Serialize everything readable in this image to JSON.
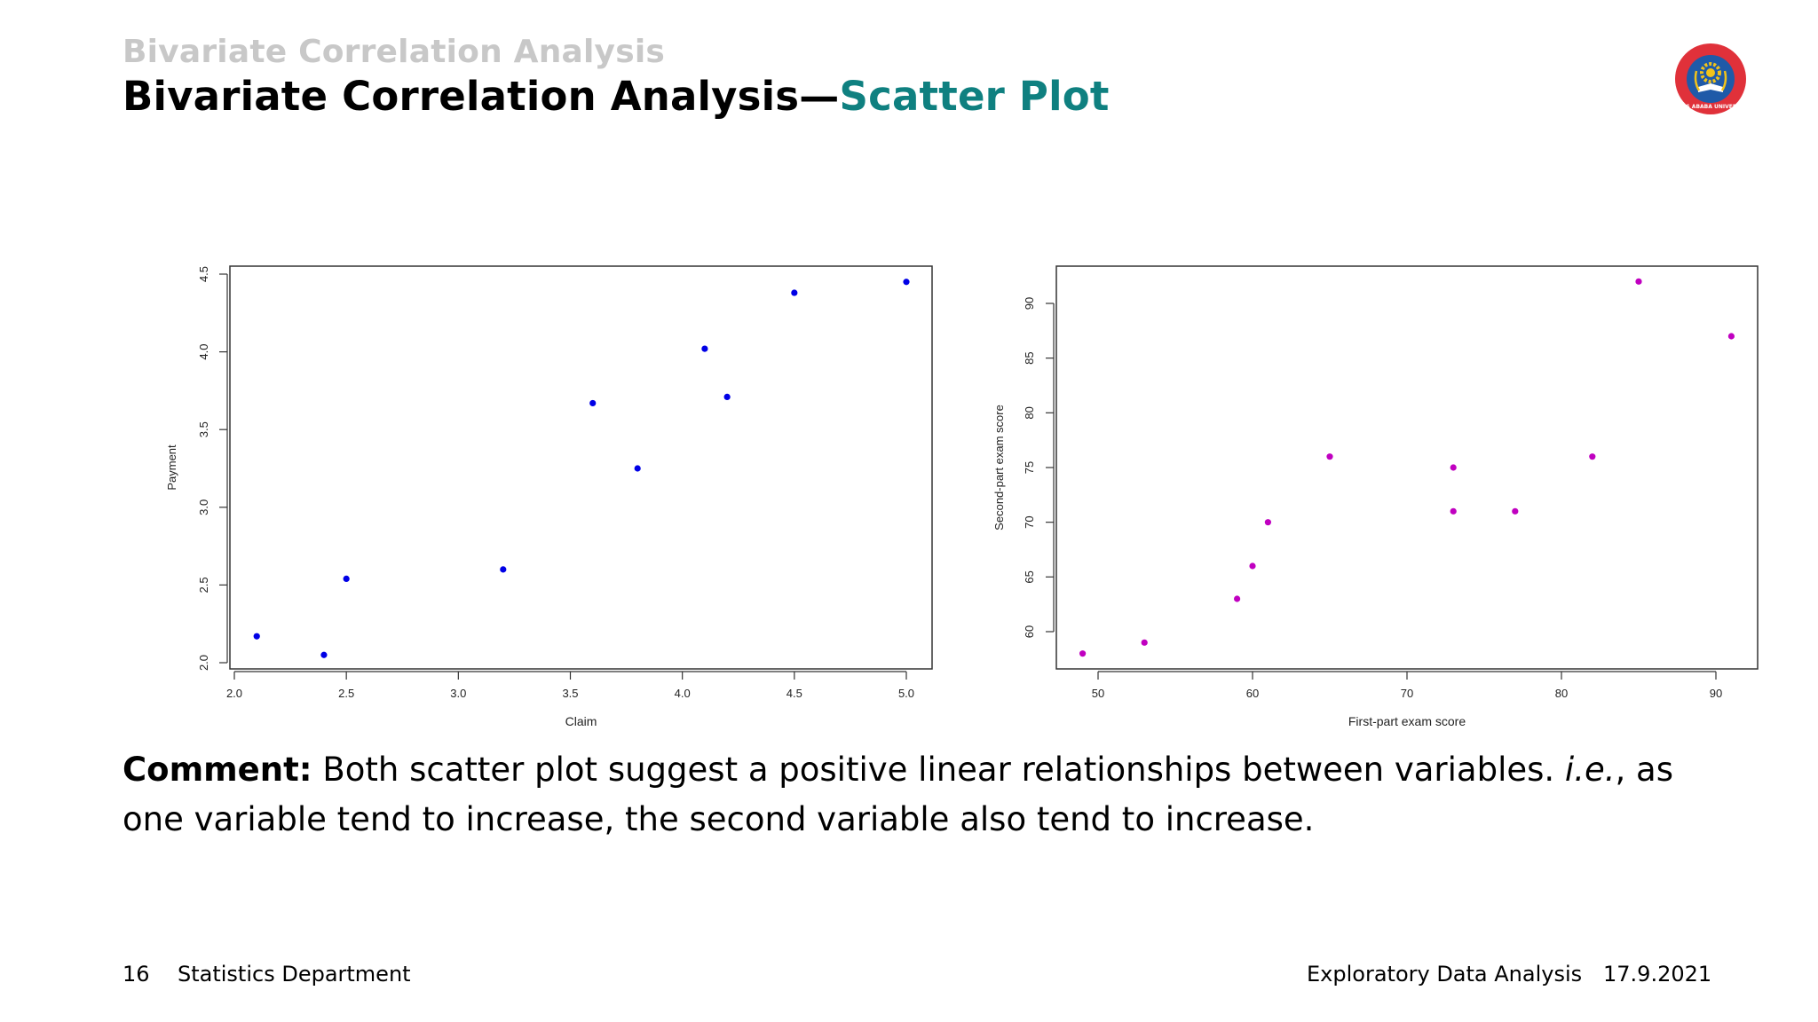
{
  "slide": {
    "section_title": "Bivariate Correlation Analysis",
    "frame_title_main": "Bivariate Correlation Analysis—",
    "frame_title_accent": "Scatter Plot",
    "accent_color": "#0f8080",
    "logo": {
      "icon": "university-seal-icon",
      "text": "ADDIS ABABA UNIVERSITY",
      "colors": {
        "ring": "#e0313a",
        "inner": "#1f5aa8",
        "gear": "#f2c31a"
      }
    },
    "comment": {
      "label": "Comment:",
      "text_part1": " Both scatter plot suggest a positive linear relationships between variables. ",
      "text_italic": "i.e.",
      "text_part2": ", as one variable tend to increase, the second variable also tend to increase."
    },
    "footer": {
      "page_number": "16",
      "department": "Statistics Department",
      "course": "Exploratory Data Analysis",
      "date": "17.9.2021"
    }
  },
  "chart_data": [
    {
      "type": "scatter",
      "title": "",
      "xlabel": "Claim",
      "ylabel": "Payment",
      "point_color": "#0000e6",
      "xlim": [
        2.0,
        5.0
      ],
      "ylim": [
        2.0,
        4.5
      ],
      "xticks": [
        2.0,
        2.5,
        3.0,
        3.5,
        4.0,
        4.5,
        5.0
      ],
      "xtick_labels": [
        "2.0",
        "2.5",
        "3.0",
        "3.5",
        "4.0",
        "4.5",
        "5.0"
      ],
      "yticks": [
        2.0,
        2.5,
        3.0,
        3.5,
        4.0,
        4.5
      ],
      "ytick_labels": [
        "2.0",
        "2.5",
        "3.0",
        "3.5",
        "4.0",
        "4.5"
      ],
      "grid": false,
      "legend": null,
      "x": [
        2.1,
        2.4,
        2.5,
        3.2,
        3.6,
        3.8,
        4.1,
        4.2,
        4.5,
        5.0
      ],
      "y": [
        2.17,
        2.05,
        2.54,
        2.6,
        3.67,
        3.25,
        4.02,
        3.71,
        4.38,
        4.45
      ]
    },
    {
      "type": "scatter",
      "title": "",
      "xlabel": "First-part exam score",
      "ylabel": "Second-part exam score",
      "point_color": "#c000c0",
      "xlim": [
        47,
        92
      ],
      "ylim": [
        57,
        93
      ],
      "xticks": [
        50,
        60,
        70,
        80,
        90
      ],
      "xtick_labels": [
        "50",
        "60",
        "70",
        "80",
        "90"
      ],
      "yticks": [
        60,
        65,
        70,
        75,
        80,
        85,
        90
      ],
      "ytick_labels": [
        "60",
        "65",
        "70",
        "75",
        "80",
        "85",
        "90"
      ],
      "grid": false,
      "legend": null,
      "x": [
        49,
        53,
        59,
        60,
        61,
        65,
        73,
        73,
        77,
        82,
        85,
        91
      ],
      "y": [
        58,
        59,
        63,
        66,
        70,
        76,
        75,
        71,
        71,
        76,
        92,
        87
      ]
    }
  ]
}
